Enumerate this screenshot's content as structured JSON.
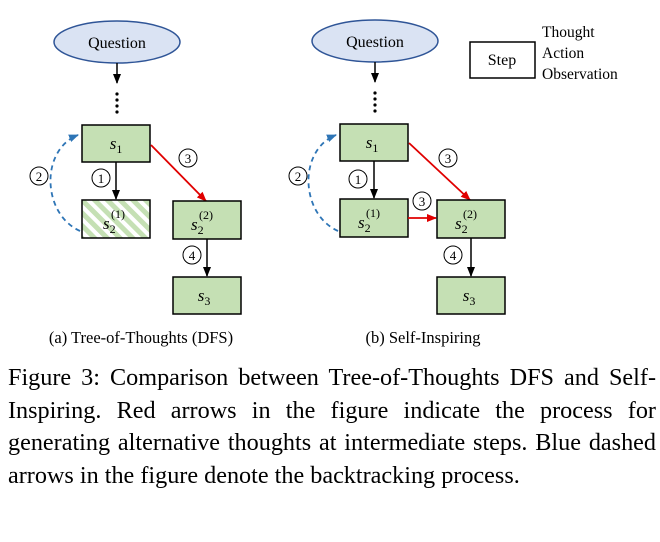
{
  "colors": {
    "node_fill": "#c5e0b4",
    "node_stroke": "#000000",
    "ellipse_fill": "#dae3f3",
    "ellipse_stroke": "#2f5597",
    "red_arrow": "#e00000",
    "blue_arrow": "#2e75b6"
  },
  "legend": {
    "step_label": "Step",
    "thought": "Thought",
    "action": "Action",
    "observation": "Observation"
  },
  "panel_a": {
    "question": "Question",
    "node_s1": {
      "base": "s",
      "sub": "1",
      "sup": ""
    },
    "node_s2_1": {
      "base": "s",
      "sub": "2",
      "sup": "(1)"
    },
    "node_s2_2": {
      "base": "s",
      "sub": "2",
      "sup": "(2)"
    },
    "node_s3": {
      "base": "s",
      "sub": "3",
      "sup": ""
    },
    "step_1": "1",
    "step_2": "2",
    "step_3": "3",
    "step_4": "4",
    "caption": "(a) Tree-of-Thoughts (DFS)"
  },
  "panel_b": {
    "question": "Question",
    "node_s1": {
      "base": "s",
      "sub": "1",
      "sup": ""
    },
    "node_s2_1": {
      "base": "s",
      "sub": "2",
      "sup": "(1)"
    },
    "node_s2_2": {
      "base": "s",
      "sub": "2",
      "sup": "(2)"
    },
    "node_s3": {
      "base": "s",
      "sub": "3",
      "sup": ""
    },
    "step_1": "1",
    "step_2": "2",
    "step_3a": "3",
    "step_3b": "3",
    "step_4": "4",
    "caption": "(b) Self-Inspiring"
  },
  "figure_caption": "Figure 3: Comparison between Tree-of-Thoughts DFS and Self-Inspiring. Red arrows in the figure indicate the process for generating alternative thoughts at intermediate steps. Blue dashed arrows in the figure denote the backtracking process."
}
